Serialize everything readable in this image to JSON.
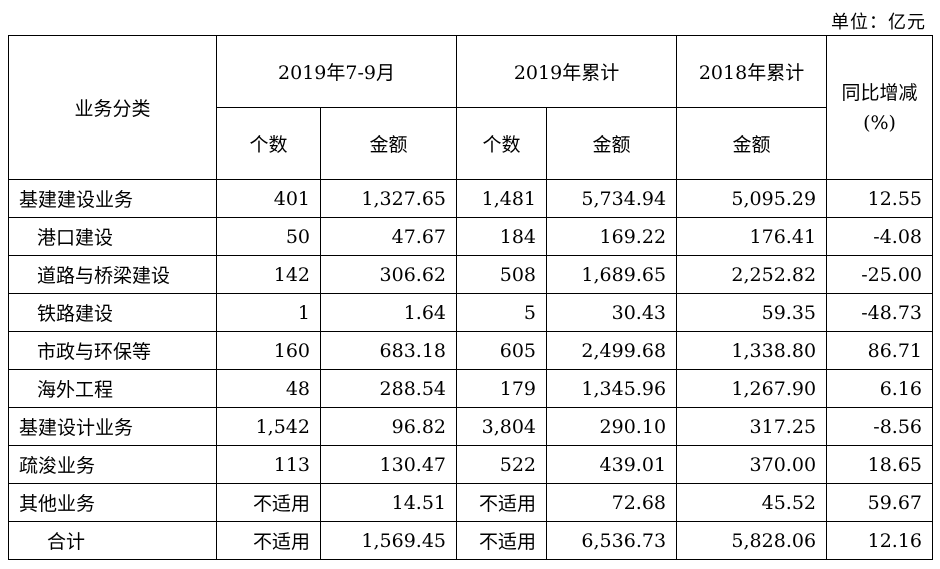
{
  "unit_label": "单位：亿元",
  "header": {
    "category": "业务分类",
    "period1": "2019年7-9月",
    "period2": "2019年累计",
    "period3": "2018年累计",
    "yoy_line1": "同比增减",
    "yoy_line2": "(%)",
    "count": "个数",
    "amount": "金额"
  },
  "rows": [
    {
      "name": "基建建设业务",
      "c1": "401",
      "a1": "1,327.65",
      "c2": "1,481",
      "a2": "5,734.94",
      "a3": "5,095.29",
      "yoy": "12.55"
    },
    {
      "name": "港口建设",
      "c1": "50",
      "a1": "47.67",
      "c2": "184",
      "a2": "169.22",
      "a3": "176.41",
      "yoy": "-4.08"
    },
    {
      "name": "道路与桥梁建设",
      "c1": "142",
      "a1": "306.62",
      "c2": "508",
      "a2": "1,689.65",
      "a3": "2,252.82",
      "yoy": "-25.00"
    },
    {
      "name": "铁路建设",
      "c1": "1",
      "a1": "1.64",
      "c2": "5",
      "a2": "30.43",
      "a3": "59.35",
      "yoy": "-48.73"
    },
    {
      "name": "市政与环保等",
      "c1": "160",
      "a1": "683.18",
      "c2": "605",
      "a2": "2,499.68",
      "a3": "1,338.80",
      "yoy": "86.71"
    },
    {
      "name": "海外工程",
      "c1": "48",
      "a1": "288.54",
      "c2": "179",
      "a2": "1,345.96",
      "a3": "1,267.90",
      "yoy": "6.16"
    },
    {
      "name": "基建设计业务",
      "c1": "1,542",
      "a1": "96.82",
      "c2": "3,804",
      "a2": "290.10",
      "a3": "317.25",
      "yoy": "-8.56"
    },
    {
      "name": "疏浚业务",
      "c1": "113",
      "a1": "130.47",
      "c2": "522",
      "a2": "439.01",
      "a3": "370.00",
      "yoy": "18.65"
    },
    {
      "name": "其他业务",
      "c1": "不适用",
      "a1": "14.51",
      "c2": "不适用",
      "a2": "72.68",
      "a3": "45.52",
      "yoy": "59.67"
    },
    {
      "name": "合计",
      "c1": "不适用",
      "a1": "1,569.45",
      "c2": "不适用",
      "a2": "6,536.73",
      "a3": "5,828.06",
      "yoy": "12.16"
    }
  ]
}
